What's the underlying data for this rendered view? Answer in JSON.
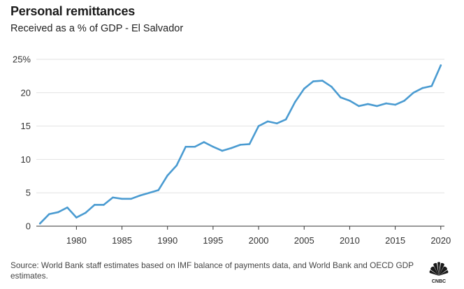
{
  "header": {
    "title": "Personal remittances",
    "subtitle": "Received as a % of GDP - El Salvador"
  },
  "footer": {
    "source": "Source: World Bank staff estimates based on IMF balance of payments data, and World Bank and OECD GDP estimates.",
    "logo_label": "CNBC",
    "logo_icon": "cnbc-peacock-icon"
  },
  "colors": {
    "line": "#4a9bd1",
    "grid": "#e2e2e2",
    "axis": "#333333"
  },
  "chart_data": {
    "type": "line",
    "title": "Personal remittances",
    "subtitle": "Received as a % of GDP - El Salvador",
    "xlabel": "",
    "ylabel": "",
    "xlim": [
      1975.6,
      2020.4
    ],
    "ylim": [
      0,
      25
    ],
    "x_ticks": [
      1980,
      1985,
      1990,
      1995,
      2000,
      2005,
      2010,
      2015,
      2020
    ],
    "x_tick_labels": [
      "1980",
      "1985",
      "1990",
      "1995",
      "2000",
      "2005",
      "2010",
      "2015",
      "2020"
    ],
    "y_ticks": [
      0,
      5,
      10,
      15,
      20,
      25
    ],
    "y_tick_labels": [
      "0",
      "5",
      "10",
      "15",
      "20",
      "25%"
    ],
    "grid": "horizontal",
    "series": [
      {
        "name": "Personal remittances (% of GDP)",
        "x": [
          1976,
          1977,
          1978,
          1979,
          1980,
          1981,
          1982,
          1983,
          1984,
          1985,
          1986,
          1987,
          1988,
          1989,
          1990,
          1991,
          1992,
          1993,
          1994,
          1995,
          1996,
          1997,
          1998,
          1999,
          2000,
          2001,
          2002,
          2003,
          2004,
          2005,
          2006,
          2007,
          2008,
          2009,
          2010,
          2011,
          2012,
          2013,
          2014,
          2015,
          2016,
          2017,
          2018,
          2019,
          2020
        ],
        "values": [
          0.4,
          1.8,
          2.1,
          2.8,
          1.3,
          2.0,
          3.2,
          3.2,
          4.3,
          4.1,
          4.1,
          4.6,
          5.0,
          5.4,
          7.6,
          9.1,
          11.9,
          11.9,
          12.6,
          11.9,
          11.3,
          11.7,
          12.2,
          12.3,
          15.0,
          15.7,
          15.4,
          16.0,
          18.6,
          20.6,
          21.7,
          21.8,
          20.9,
          19.3,
          18.8,
          18.0,
          18.3,
          18.0,
          18.4,
          18.2,
          18.8,
          20.0,
          20.7,
          21.0,
          24.1
        ]
      }
    ]
  }
}
